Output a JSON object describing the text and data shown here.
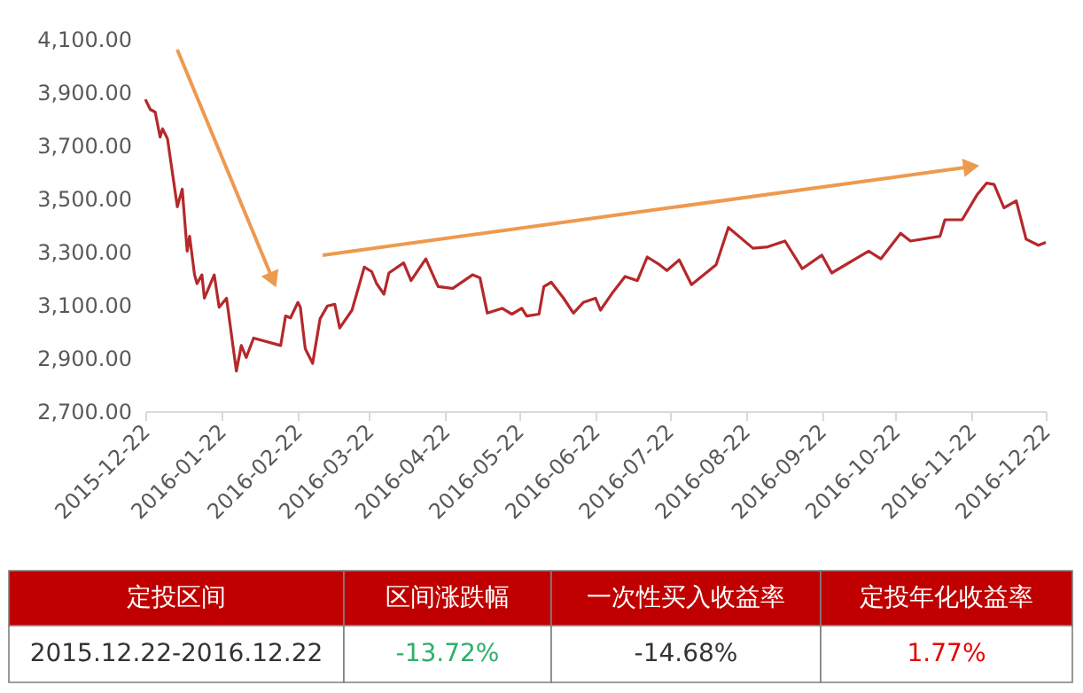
{
  "chart_data": {
    "type": "line",
    "x": [
      "2015-12-22",
      "2015-12-24",
      "2015-12-26",
      "2015-12-28",
      "2015-12-29",
      "2015-12-31",
      "2016-01-04",
      "2016-01-06",
      "2016-01-08",
      "2016-01-09",
      "2016-01-11",
      "2016-01-12",
      "2016-01-14",
      "2016-01-15",
      "2016-01-19",
      "2016-01-21",
      "2016-01-24",
      "2016-01-28",
      "2016-01-30",
      "2016-02-01",
      "2016-02-04",
      "2016-02-15",
      "2016-02-17",
      "2016-02-19",
      "2016-02-22",
      "2016-02-23",
      "2016-02-25",
      "2016-02-28",
      "2016-03-02",
      "2016-03-05",
      "2016-03-08",
      "2016-03-10",
      "2016-03-15",
      "2016-03-20",
      "2016-03-23",
      "2016-03-25",
      "2016-03-28",
      "2016-03-30",
      "2016-04-05",
      "2016-04-08",
      "2016-04-14",
      "2016-04-19",
      "2016-04-25",
      "2016-05-03",
      "2016-05-06",
      "2016-05-09",
      "2016-05-15",
      "2016-05-19",
      "2016-05-23",
      "2016-05-25",
      "2016-05-30",
      "2016-06-01",
      "2016-06-04",
      "2016-06-09",
      "2016-06-13",
      "2016-06-17",
      "2016-06-22",
      "2016-06-24",
      "2016-06-29",
      "2016-07-04",
      "2016-07-09",
      "2016-07-13",
      "2016-07-18",
      "2016-07-21",
      "2016-07-26",
      "2016-07-31",
      "2016-08-10",
      "2016-08-15",
      "2016-08-25",
      "2016-08-31",
      "2016-09-07",
      "2016-09-14",
      "2016-09-22",
      "2016-09-26",
      "2016-10-11",
      "2016-10-16",
      "2016-10-24",
      "2016-10-28",
      "2016-11-09",
      "2016-11-11",
      "2016-11-18",
      "2016-11-24",
      "2016-11-28",
      "2016-12-01",
      "2016-12-05",
      "2016-12-10",
      "2016-12-14",
      "2016-12-19",
      "2016-12-22"
    ],
    "series": [
      {
        "color": "#b5282b",
        "values": [
          3873,
          3835,
          3825,
          3731,
          3762,
          3725,
          3469,
          3535,
          3302,
          3358,
          3213,
          3180,
          3213,
          3125,
          3213,
          3091,
          3125,
          2851,
          2947,
          2902,
          2975,
          2947,
          3058,
          3051,
          3109,
          3091,
          2935,
          2880,
          3047,
          3096,
          3102,
          3013,
          3080,
          3242,
          3225,
          3180,
          3140,
          3220,
          3258,
          3191,
          3273,
          3169,
          3162,
          3213,
          3202,
          3069,
          3087,
          3065,
          3087,
          3058,
          3065,
          3169,
          3185,
          3125,
          3069,
          3109,
          3125,
          3080,
          3147,
          3207,
          3191,
          3280,
          3251,
          3229,
          3269,
          3176,
          3251,
          3391,
          3313,
          3318,
          3340,
          3236,
          3287,
          3220,
          3302,
          3273,
          3369,
          3340,
          3358,
          3420,
          3420,
          3513,
          3558,
          3553,
          3465,
          3491,
          3347,
          3324,
          3335
        ]
      }
    ],
    "xlim": [
      "2015-12-22",
      "2016-12-22"
    ],
    "xticks": [
      "2015-12-22",
      "2016-01-22",
      "2016-02-22",
      "2016-03-22",
      "2016-04-22",
      "2016-05-22",
      "2016-06-22",
      "2016-07-22",
      "2016-08-22",
      "2016-09-22",
      "2016-10-22",
      "2016-11-22",
      "2016-12-22"
    ],
    "ylim": [
      2700,
      4100
    ],
    "yticks": [
      {
        "value": 2700,
        "label": "2,700.00"
      },
      {
        "value": 2900,
        "label": "2,900.00"
      },
      {
        "value": 3100,
        "label": "3,100.00"
      },
      {
        "value": 3300,
        "label": "3,300.00"
      },
      {
        "value": 3500,
        "label": "3,500.00"
      },
      {
        "value": 3700,
        "label": "3,700.00"
      },
      {
        "value": 3900,
        "label": "3,900.00"
      },
      {
        "value": 4100,
        "label": "4,100.00"
      }
    ],
    "annotations": [
      "定投区间",
      "区间涨跌幅",
      "一次性买入收益率",
      "定投年化收益率",
      "2015.12.22-2016.12.22",
      "-13.72%",
      "-14.68%",
      "1.77%"
    ]
  }
}
